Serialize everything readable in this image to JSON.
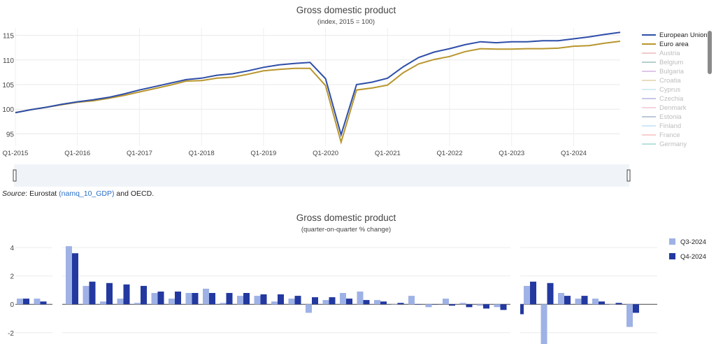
{
  "source": {
    "label": "Source",
    "pre": ": Eurostat ",
    "link": "(namq_10_GDP)",
    "post": " and OECD."
  },
  "chart1": {
    "title": "Gross domestic product",
    "subtitle": "(index, 2015 = 100)",
    "colors": {
      "European Union": "#2e4ea8",
      "Euro area": "#b8962e"
    },
    "legend": [
      {
        "name": "European Union",
        "color": "#2e4ea8",
        "active": true
      },
      {
        "name": "Euro area",
        "color": "#b8962e",
        "active": true
      },
      {
        "name": "Austria",
        "color": "#e8a0a0",
        "active": false
      },
      {
        "name": "Belgium",
        "color": "#7aa8a0",
        "active": false
      },
      {
        "name": "Bulgaria",
        "color": "#c59ad8",
        "active": false
      },
      {
        "name": "Croatia",
        "color": "#d8c08a",
        "active": false
      },
      {
        "name": "Cyprus",
        "color": "#b8dcef",
        "active": false
      },
      {
        "name": "Czechia",
        "color": "#9a9ad8",
        "active": false
      },
      {
        "name": "Denmark",
        "color": "#f0b0c8",
        "active": false
      },
      {
        "name": "Estonia",
        "color": "#8a9ab8",
        "active": false
      },
      {
        "name": "Finland",
        "color": "#a8d8f0",
        "active": false
      },
      {
        "name": "France",
        "color": "#f0a8a8",
        "active": false
      },
      {
        "name": "Germany",
        "color": "#80c8c0",
        "active": false
      }
    ]
  },
  "chart_data": [
    {
      "type": "line",
      "title": "Gross domestic product",
      "subtitle": "(index, 2015 = 100)",
      "x": [
        "Q1-2015",
        "Q2-2015",
        "Q3-2015",
        "Q4-2015",
        "Q1-2016",
        "Q2-2016",
        "Q3-2016",
        "Q4-2016",
        "Q1-2017",
        "Q2-2017",
        "Q3-2017",
        "Q4-2017",
        "Q1-2018",
        "Q2-2018",
        "Q3-2018",
        "Q4-2018",
        "Q1-2019",
        "Q2-2019",
        "Q3-2019",
        "Q4-2019",
        "Q1-2020",
        "Q2-2020",
        "Q3-2020",
        "Q4-2020",
        "Q1-2021",
        "Q2-2021",
        "Q3-2021",
        "Q4-2021",
        "Q1-2022",
        "Q2-2022",
        "Q3-2022",
        "Q4-2022",
        "Q1-2023",
        "Q2-2023",
        "Q3-2023",
        "Q4-2023",
        "Q1-2024",
        "Q2-2024",
        "Q3-2024",
        "Q4-2024"
      ],
      "xticks": [
        "Q1-2015",
        "Q1-2016",
        "Q1-2017",
        "Q1-2018",
        "Q1-2019",
        "Q1-2020",
        "Q1-2021",
        "Q1-2022",
        "Q1-2023",
        "Q1-2024"
      ],
      "yticks": [
        95,
        100,
        105,
        110,
        115
      ],
      "ylim": [
        92.5,
        116.5
      ],
      "grid": true,
      "legend_position": "right",
      "series": [
        {
          "name": "European Union",
          "values": [
            99.3,
            99.9,
            100.4,
            101.0,
            101.5,
            101.9,
            102.4,
            103.1,
            103.9,
            104.6,
            105.3,
            106.0,
            106.3,
            106.9,
            107.2,
            107.8,
            108.5,
            109.0,
            109.3,
            109.5,
            106.2,
            94.8,
            105.0,
            105.5,
            106.3,
            108.6,
            110.5,
            111.6,
            112.3,
            113.1,
            113.7,
            113.5,
            113.7,
            113.7,
            113.9,
            113.9,
            114.3,
            114.7,
            115.2,
            115.6
          ]
        },
        {
          "name": "Euro area",
          "values": [
            99.3,
            99.9,
            100.4,
            100.9,
            101.4,
            101.7,
            102.2,
            102.8,
            103.5,
            104.2,
            104.9,
            105.7,
            105.8,
            106.3,
            106.5,
            107.1,
            107.8,
            108.1,
            108.3,
            108.3,
            104.8,
            93.3,
            103.9,
            104.3,
            104.9,
            107.4,
            109.2,
            110.1,
            110.7,
            111.7,
            112.3,
            112.2,
            112.2,
            112.3,
            112.3,
            112.4,
            112.8,
            112.9,
            113.4,
            113.8
          ]
        }
      ]
    },
    {
      "type": "bar",
      "title": "Gross domestic product",
      "subtitle": "(quarter-on-quarter % change)",
      "yticks": [
        -2,
        0,
        2,
        4
      ],
      "ylim": [
        -2.8,
        4.4
      ],
      "grid": true,
      "legend_position": "right",
      "series": [
        {
          "name": "Q3-2024",
          "color": "#9fb2e6",
          "values": [
            0.4,
            0.4,
            4.1,
            1.3,
            0.2,
            0.4,
            0.1,
            0.8,
            0.4,
            0.8,
            1.1,
            0.1,
            0.6,
            0.6,
            0.2,
            0.4,
            -0.6,
            0.3,
            0.8,
            0.9,
            0.3,
            0.0,
            0.6,
            -0.2,
            0.4,
            0.1,
            -0.1,
            -0.2,
            -0.6,
            1.3,
            -2.8,
            0.8,
            0.4,
            0.4,
            0.0,
            -1.6
          ]
        },
        {
          "name": "Q4-2024",
          "color": "#2339a0",
          "values": [
            0.4,
            0.2,
            3.6,
            1.6,
            1.5,
            1.4,
            1.3,
            0.9,
            0.9,
            0.8,
            0.8,
            0.8,
            0.8,
            0.7,
            0.7,
            0.6,
            0.5,
            0.5,
            0.4,
            0.3,
            0.2,
            0.1,
            0.0,
            0.0,
            -0.1,
            -0.2,
            -0.3,
            -0.4,
            -0.7,
            1.6,
            1.5,
            0.6,
            0.6,
            0.2,
            0.1,
            -0.6
          ]
        }
      ]
    }
  ]
}
